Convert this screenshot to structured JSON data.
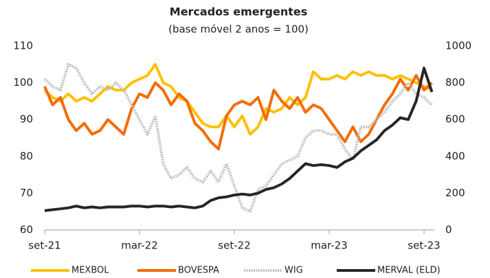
{
  "chart_data": {
    "type": "line",
    "title": "Mercados emergentes",
    "subtitle": "(base móvel 2 anos = 100)",
    "categories": [
      "set-21",
      null,
      null,
      null,
      null,
      null,
      null,
      null,
      null,
      null,
      null,
      null,
      "mar-22",
      null,
      null,
      null,
      null,
      null,
      null,
      null,
      null,
      null,
      null,
      null,
      "set-22",
      null,
      null,
      null,
      null,
      null,
      null,
      null,
      null,
      null,
      null,
      null,
      "mar-23",
      null,
      null,
      null,
      null,
      null,
      null,
      null,
      null,
      null,
      null,
      null,
      "set-23",
      null
    ],
    "ylim": [
      60,
      110
    ],
    "yticks": [
      60,
      70,
      80,
      90,
      100,
      110
    ],
    "y2lim": [
      0,
      1000
    ],
    "y2ticks": [
      0,
      200,
      400,
      600,
      800,
      1000
    ],
    "grid": false,
    "legend": "bottom",
    "series": [
      {
        "name": "MEXBOL",
        "color": "#ffc000",
        "line_style": "solid",
        "values": [
          98,
          96,
          95,
          97,
          95,
          96,
          95,
          97,
          99,
          98,
          98,
          100,
          101,
          102,
          105,
          100,
          99,
          96,
          95,
          92,
          89,
          88,
          88,
          91,
          88,
          91,
          86,
          88,
          93,
          92,
          93,
          96,
          94,
          96,
          103,
          101,
          101,
          102,
          101,
          103,
          102,
          103,
          102,
          102,
          101,
          102,
          101,
          100,
          99,
          98
        ]
      },
      {
        "name": "BOVESPA",
        "color": "#f36c00",
        "line_style": "solid",
        "values": [
          99,
          94,
          96,
          90,
          87,
          89,
          86,
          87,
          90,
          88,
          86,
          93,
          97,
          96,
          100,
          98,
          94,
          97,
          95,
          89,
          87,
          84,
          82,
          91,
          94,
          95,
          94,
          96,
          90,
          98,
          95,
          93,
          96,
          92,
          94,
          93,
          90,
          87,
          84,
          88,
          84,
          86,
          90,
          94,
          97,
          101,
          98,
          102,
          98,
          100
        ]
      },
      {
        "name": "WIG",
        "color": "#bfbfbf",
        "line_style": "dotted",
        "values": [
          101,
          99,
          98,
          105,
          104,
          100,
          97,
          99,
          98,
          100,
          98,
          94,
          90,
          86,
          91,
          78,
          74,
          75,
          77,
          74,
          73,
          76,
          73,
          78,
          72,
          66,
          65,
          71,
          72,
          75,
          78,
          79,
          80,
          85,
          87,
          87,
          86,
          86,
          82,
          79,
          88,
          88,
          90,
          92,
          95,
          97,
          100,
          97,
          96,
          94
        ]
      },
      {
        "name": "MERVAL (ELD)",
        "color": "#262626",
        "line_style": "solid",
        "axis": "y2",
        "values": [
          105,
          110,
          115,
          120,
          130,
          120,
          125,
          120,
          125,
          125,
          125,
          130,
          130,
          125,
          130,
          130,
          125,
          130,
          125,
          120,
          130,
          160,
          175,
          180,
          190,
          195,
          190,
          200,
          220,
          230,
          250,
          280,
          320,
          360,
          350,
          355,
          350,
          340,
          370,
          390,
          430,
          460,
          490,
          540,
          570,
          610,
          600,
          700,
          880,
          750
        ]
      }
    ]
  }
}
